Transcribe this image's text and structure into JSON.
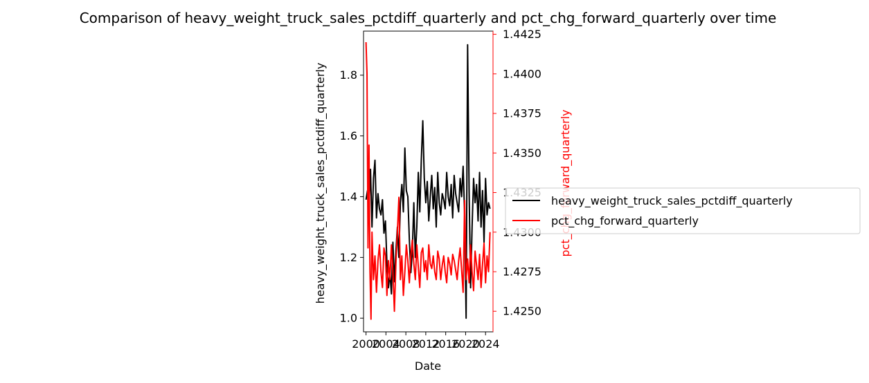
{
  "chart_data": {
    "type": "line",
    "title": "Comparison of heavy_weight_truck_sales_pctdiff_quarterly and pct_chg_forward_quarterly over time",
    "xlabel": "Date",
    "ylabel_left": "heavy_weight_truck_sales_pctdiff_quarterly",
    "ylabel_right": "pct_chg_forward_quarterly",
    "xlim": [
      1999.5,
      2025.5
    ],
    "ylim_left": [
      0.955,
      1.945
    ],
    "ylim_right": [
      1.4237,
      1.4427
    ],
    "x_ticks": [
      "2000",
      "2004",
      "2008",
      "2012",
      "2016",
      "2020",
      "2024"
    ],
    "y_ticks_left": [
      "1.0",
      "1.2",
      "1.4",
      "1.6",
      "1.8"
    ],
    "y_ticks_right": [
      "1.4250",
      "1.4275",
      "1.4300",
      "1.4325",
      "1.4350",
      "1.4375",
      "1.4400",
      "1.4425"
    ],
    "legend_position": "center-right outside",
    "grid": false,
    "series": [
      {
        "name": "heavy_weight_truck_sales_pctdiff_quarterly",
        "axis": "left",
        "color": "#000000",
        "x": [
          2000.0,
          2000.3,
          2000.6,
          2000.9,
          2001.2,
          2001.5,
          2001.8,
          2002.1,
          2002.4,
          2002.7,
          2003.0,
          2003.3,
          2003.6,
          2003.9,
          2004.2,
          2004.5,
          2004.8,
          2005.1,
          2005.4,
          2005.7,
          2006.0,
          2006.3,
          2006.6,
          2006.9,
          2007.2,
          2007.5,
          2007.8,
          2008.1,
          2008.4,
          2008.7,
          2009.0,
          2009.3,
          2009.6,
          2009.9,
          2010.2,
          2010.5,
          2010.8,
          2011.1,
          2011.4,
          2011.7,
          2012.0,
          2012.3,
          2012.6,
          2012.9,
          2013.2,
          2013.5,
          2013.8,
          2014.1,
          2014.4,
          2014.7,
          2015.0,
          2015.3,
          2015.6,
          2015.9,
          2016.2,
          2016.5,
          2016.8,
          2017.1,
          2017.4,
          2017.7,
          2018.0,
          2018.3,
          2018.6,
          2018.9,
          2019.2,
          2019.5,
          2019.8,
          2020.1,
          2020.4,
          2020.7,
          2021.0,
          2021.3,
          2021.6,
          2021.9,
          2022.2,
          2022.5,
          2022.8,
          2023.1,
          2023.4,
          2023.7,
          2024.0,
          2024.3,
          2024.6,
          2024.9
        ],
        "values": [
          1.39,
          1.42,
          1.37,
          1.49,
          1.3,
          1.46,
          1.52,
          1.33,
          1.41,
          1.36,
          1.34,
          1.39,
          1.28,
          1.32,
          1.18,
          1.1,
          1.15,
          1.08,
          1.25,
          1.12,
          1.22,
          1.3,
          1.2,
          1.38,
          1.44,
          1.35,
          1.56,
          1.42,
          1.4,
          1.26,
          1.15,
          1.22,
          1.38,
          1.2,
          1.3,
          1.48,
          1.35,
          1.52,
          1.65,
          1.46,
          1.38,
          1.45,
          1.32,
          1.4,
          1.47,
          1.36,
          1.43,
          1.3,
          1.48,
          1.38,
          1.34,
          1.41,
          1.39,
          1.36,
          1.48,
          1.4,
          1.37,
          1.44,
          1.33,
          1.47,
          1.41,
          1.38,
          1.35,
          1.46,
          1.4,
          1.5,
          1.34,
          1.0,
          1.9,
          1.42,
          1.1,
          1.3,
          1.46,
          1.38,
          1.44,
          1.32,
          1.48,
          1.3,
          1.42,
          1.25,
          1.46,
          1.34,
          1.38,
          1.36
        ]
      },
      {
        "name": "pct_chg_forward_quarterly",
        "axis": "right",
        "color": "#ff0000",
        "x": [
          2000.0,
          2000.2,
          2000.4,
          2000.6,
          2000.8,
          2001.0,
          2001.2,
          2001.5,
          2001.8,
          2002.1,
          2002.4,
          2002.7,
          2003.0,
          2003.3,
          2003.6,
          2003.9,
          2004.2,
          2004.5,
          2004.8,
          2005.1,
          2005.4,
          2005.7,
          2006.0,
          2006.3,
          2006.6,
          2006.9,
          2007.2,
          2007.5,
          2007.8,
          2008.1,
          2008.4,
          2008.7,
          2009.0,
          2009.3,
          2009.6,
          2009.9,
          2010.2,
          2010.5,
          2010.8,
          2011.1,
          2011.4,
          2011.7,
          2012.0,
          2012.3,
          2012.6,
          2012.9,
          2013.2,
          2013.5,
          2013.8,
          2014.1,
          2014.4,
          2014.7,
          2015.0,
          2015.3,
          2015.6,
          2015.9,
          2016.2,
          2016.5,
          2016.8,
          2017.1,
          2017.4,
          2017.7,
          2018.0,
          2018.3,
          2018.6,
          2018.9,
          2019.2,
          2019.5,
          2019.8,
          2020.1,
          2020.4,
          2020.7,
          2021.0,
          2021.3,
          2021.6,
          2021.9,
          2022.2,
          2022.5,
          2022.8,
          2023.1,
          2023.4,
          2023.7,
          2024.0,
          2024.3,
          2024.6,
          2024.9
        ],
        "values": [
          1.442,
          1.44,
          1.429,
          1.4355,
          1.4275,
          1.4245,
          1.43,
          1.427,
          1.4285,
          1.4262,
          1.4282,
          1.4292,
          1.4275,
          1.4265,
          1.429,
          1.4285,
          1.426,
          1.4282,
          1.427,
          1.4292,
          1.4275,
          1.425,
          1.428,
          1.43,
          1.4322,
          1.427,
          1.4285,
          1.426,
          1.4275,
          1.4292,
          1.4282,
          1.4268,
          1.4285,
          1.4295,
          1.428,
          1.427,
          1.4292,
          1.4278,
          1.4265,
          1.4287,
          1.429,
          1.4275,
          1.4282,
          1.427,
          1.4292,
          1.428,
          1.4277,
          1.4285,
          1.4275,
          1.427,
          1.4288,
          1.4283,
          1.427,
          1.4279,
          1.4285,
          1.4275,
          1.4268,
          1.4284,
          1.428,
          1.4273,
          1.4286,
          1.4282,
          1.4276,
          1.427,
          1.4282,
          1.429,
          1.4276,
          1.4262,
          1.432,
          1.427,
          1.4283,
          1.4268,
          1.4292,
          1.4275,
          1.4263,
          1.4288,
          1.4279,
          1.427,
          1.4286,
          1.4265,
          1.428,
          1.4293,
          1.4268,
          1.4285,
          1.4275,
          1.43
        ]
      }
    ]
  }
}
